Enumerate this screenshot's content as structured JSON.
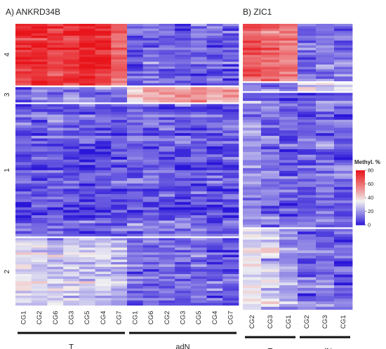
{
  "chart_data": [
    {
      "type": "heatmap",
      "title": "A) ANKRD34B",
      "columns": [
        "CG1",
        "CG2",
        "CG6",
        "CG3",
        "CG5",
        "CG4",
        "CG7",
        "CG1",
        "CG6",
        "CG2",
        "CG3",
        "CG5",
        "CG4",
        "CG7"
      ],
      "column_groups": [
        {
          "label": "T",
          "count": 7
        },
        {
          "label": "adN",
          "count": 7
        }
      ],
      "row_clusters": [
        {
          "label": "4",
          "means": [
            72,
            74,
            70,
            73,
            75,
            74,
            62,
            9,
            12,
            10,
            9,
            11,
            10,
            9
          ]
        },
        {
          "label": "3",
          "means": [
            12,
            11,
            10,
            14,
            11,
            12,
            10,
            40,
            45,
            50,
            48,
            52,
            47,
            50
          ]
        },
        {
          "label": "1",
          "means": [
            10,
            9,
            12,
            9,
            8,
            7,
            9,
            12,
            11,
            10,
            9,
            10,
            9,
            10
          ]
        },
        {
          "label": "2",
          "means": [
            32,
            30,
            26,
            28,
            27,
            29,
            25,
            11,
            13,
            12,
            10,
            12,
            11,
            10
          ]
        }
      ]
    },
    {
      "type": "heatmap",
      "title": "B) ZIC1",
      "columns": [
        "CG2",
        "CG3",
        "CG1",
        "CG2",
        "CG3",
        "CG1"
      ],
      "column_groups": [
        {
          "label": "T",
          "count": 3
        },
        {
          "label": "adN",
          "count": 3
        }
      ],
      "row_clusters": [
        {
          "label": "",
          "means": [
            65,
            62,
            58,
            14,
            16,
            13
          ]
        },
        {
          "label": "",
          "means": [
            14,
            16,
            8,
            30,
            26,
            28
          ]
        },
        {
          "label": "",
          "means": [
            16,
            14,
            10,
            12,
            13,
            11
          ]
        },
        {
          "label": "",
          "means": [
            32,
            28,
            22,
            13,
            12,
            11
          ]
        }
      ]
    }
  ],
  "legend": {
    "title": "Methyl. %",
    "ticks": [
      0,
      20,
      40,
      60,
      80
    ],
    "range": [
      0,
      80
    ],
    "colors": {
      "low": "#2a16d8",
      "mid": "#f2f2f2",
      "high": "#e8141a"
    }
  }
}
